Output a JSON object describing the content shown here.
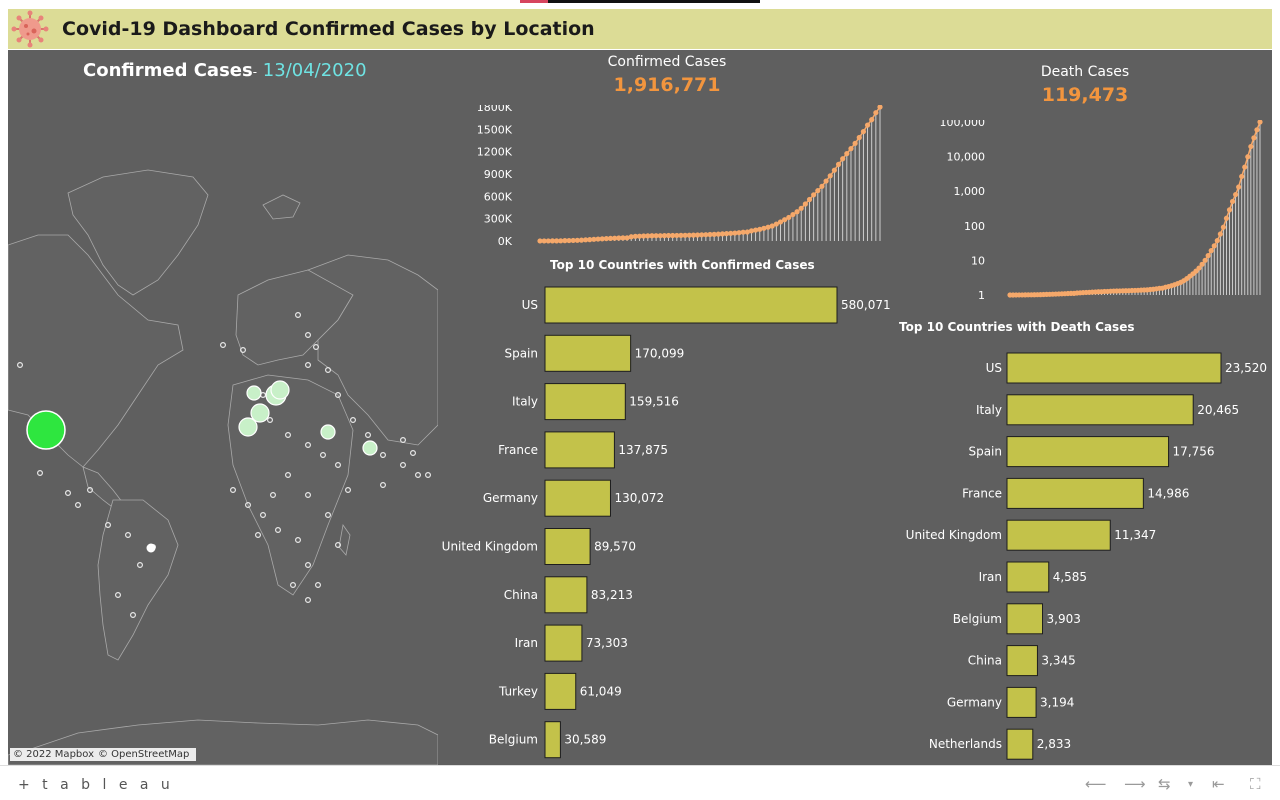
{
  "header": {
    "title": "Covid-19 Dashboard Confirmed Cases by Location",
    "icon": "virus-icon",
    "background": "#dcdc96"
  },
  "map_panel": {
    "title_label": "Confirmed Cases",
    "title_separator": "-",
    "title_date": "13/04/2020",
    "credit_mapbox": "© 2022 Mapbox",
    "credit_osm": "© OpenStreetMap"
  },
  "confirmed_summary": {
    "label": "Confirmed Cases",
    "value": "1,916,771"
  },
  "death_summary": {
    "label": "Death Cases",
    "value": "119,473"
  },
  "colors": {
    "dashboard_bg": "#5f5f5f",
    "bar_fill": "#c3c24a",
    "accent_orange": "#f2953e",
    "trend_line": "#f5a86a",
    "date_cyan": "#6fe3e3",
    "large_bubble": "#2ee63f",
    "medium_bubble": "#c8f0c8"
  },
  "footer": {
    "logo_text": "+ t a b l e a u",
    "back_icon": "arrow-left-icon",
    "forward_icon": "arrow-right-icon",
    "revert_icon": "revert-icon",
    "reset_icon": "reset-start-icon",
    "fullscreen_icon": "fullscreen-icon"
  },
  "chart_data": [
    {
      "type": "line",
      "title": "Confirmed Cases",
      "ytick_labels": [
        "1800K",
        "1500K",
        "1200K",
        "900K",
        "600K",
        "300K",
        "0K"
      ],
      "ylim": [
        0,
        1916771
      ],
      "series": [
        {
          "values": [
            555,
            654,
            941,
            1434,
            2118,
            2927,
            5578,
            6166,
            8234,
            9927,
            12038,
            16787,
            19881,
            23892,
            27635,
            30817,
            34391,
            37120,
            40150,
            42762,
            44802,
            45221,
            60368,
            66885,
            69030,
            71224,
            73258,
            75136,
            75639,
            76197,
            76819,
            78572,
            78958,
            79561,
            80406,
            81388,
            82746,
            84112,
            86011,
            88369,
            90306,
            92840,
            95120,
            97886,
            101801,
            105847,
            109821,
            113590,
            118620,
            125875,
            128352,
            145205,
            156101,
            167454,
            181574,
            197102,
            214821,
            242570,
            272208,
            304507,
            336953,
            378235,
            418045,
            467653,
            529591,
            593291,
            660693,
            720140,
            782389,
            857487,
            932605,
            1013157,
            1095917,
            1176060,
            1249754,
            1321481,
            1396476,
            1480202,
            1565278,
            1657526,
            1735650,
            1835145,
            1916771
          ]
        }
      ]
    },
    {
      "type": "line",
      "title": "Death Cases",
      "yscale": "log",
      "ytick_labels": [
        "100,000",
        "10,000",
        "1,000",
        "100",
        "10",
        "1"
      ],
      "ylim": [
        1,
        119473
      ],
      "series": [
        {
          "values": [
            17,
            18,
            26,
            42,
            56,
            82,
            131,
            133,
            171,
            213,
            259,
            362,
            426,
            492,
            564,
            634,
            719,
            806,
            906,
            1013,
            1113,
            1118,
            1371,
            1523,
            1666,
            1770,
            1868,
            2007,
            2122,
            2247,
            2251,
            2458,
            2469,
            2629,
            2708,
            2770,
            2814,
            2872,
            2941,
            2996,
            3085,
            3160,
            3254,
            3348,
            3460,
            3558,
            3802,
            3988,
            4262,
            4615,
            4720,
            5404,
            5819,
            6440,
            7126,
            7905,
            8733,
            9867,
            11299,
            12973,
            14623,
            16497,
            18615,
            21181,
            23970,
            27198,
            30652,
            33925,
            37582,
            42107,
            46809,
            52983,
            58787,
            64606,
            69374,
            74565,
            81865,
            88338,
            95455,
            102525,
            108503,
            114091,
            119473
          ]
        }
      ]
    },
    {
      "type": "bar",
      "title": "Top 10 Countries with Confirmed Cases",
      "categories": [
        "US",
        "Spain",
        "Italy",
        "France",
        "Germany",
        "United Kingdom",
        "China",
        "Iran",
        "Turkey",
        "Belgium"
      ],
      "values": [
        580071,
        170099,
        159516,
        137875,
        130072,
        89570,
        83213,
        73303,
        61049,
        30589
      ],
      "value_labels": [
        "580,071",
        "170,099",
        "159,516",
        "137,875",
        "130,072",
        "89,570",
        "83,213",
        "73,303",
        "61,049",
        "30,589"
      ]
    },
    {
      "type": "bar",
      "title": "Top 10 Countries  with Death Cases",
      "categories": [
        "US",
        "Italy",
        "Spain",
        "France",
        "United Kingdom",
        "Iran",
        "Belgium",
        "China",
        "Germany",
        "Netherlands"
      ],
      "values": [
        23520,
        20465,
        17756,
        14986,
        11347,
        4585,
        3903,
        3345,
        3194,
        2833
      ],
      "value_labels": [
        "23,520",
        "20,465",
        "17,756",
        "14,986",
        "11,347",
        "4,585",
        "3,903",
        "3,345",
        "3,194",
        "2,833"
      ]
    }
  ]
}
